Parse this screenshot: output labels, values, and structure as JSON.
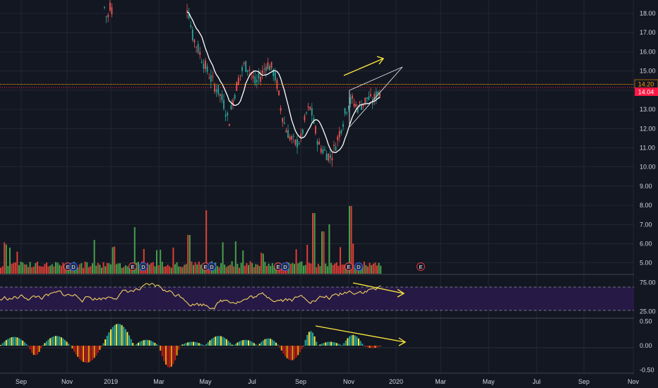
{
  "colors": {
    "background": "#131722",
    "grid": "#2a2e39",
    "up": "#26a69a",
    "down": "#ef5350",
    "volume_up": "#4caf50",
    "volume_down": "#f44336",
    "ma": "#ffffff",
    "rsi": "#f0d060",
    "rsi_band": "#2a1a4a",
    "annotation": "#ffeb3b",
    "last_price": "#ff1744",
    "ref_line": "#ff9800",
    "axis_text": "#d1d4dc"
  },
  "chart_data": [
    {
      "type": "candlestick",
      "pane": "price",
      "y_axis_ticks": [
        "18.00",
        "17.00",
        "16.00",
        "15.00",
        "14.00",
        "13.00",
        "12.00",
        "11.00",
        "10.00",
        "9.00",
        "8.00",
        "7.00",
        "6.00",
        "5.00"
      ],
      "ylim": [
        4.4,
        18.7
      ],
      "price_labels": [
        {
          "text": "14.20",
          "value": 14.2,
          "style": "reference"
        },
        {
          "text": "14.04",
          "value": 14.04,
          "style": "last"
        }
      ],
      "moving_average": "white line",
      "wedge": {
        "upper": [
          [
            40,
            13.85
          ],
          [
            49,
            14.8
          ]
        ],
        "lower": [
          [
            40,
            12.65
          ],
          [
            49,
            14.8
          ]
        ],
        "close": [
          [
            40,
            13.85
          ],
          [
            40,
            12.65
          ]
        ]
      },
      "trend_arrow": {
        "from": [
          40,
          14.55
        ],
        "to": [
          44,
          15.6
        ]
      }
    },
    {
      "type": "bar",
      "pane": "volume",
      "description": "volume histogram",
      "earnings_markers": [
        "E",
        "E",
        "E",
        "E",
        "E",
        "E",
        "E"
      ],
      "dividend_markers": [
        "D",
        "D",
        "D",
        "D",
        "D",
        "D"
      ]
    },
    {
      "type": "line",
      "pane": "rsi",
      "y_axis_ticks": [
        "75.00",
        "25.00"
      ],
      "ylim": [
        15,
        85
      ],
      "bands": [
        70,
        30
      ],
      "trend_arrow": {
        "from": [
          40,
          78
        ],
        "to": [
          47,
          68
        ]
      }
    },
    {
      "type": "bar",
      "pane": "oscillator",
      "y_axis_ticks": [
        "0.50",
        "0.00",
        "-0.50"
      ],
      "ylim": [
        -0.55,
        0.55
      ],
      "trend_arrow": {
        "from": [
          36,
          0.45
        ],
        "to": [
          47,
          0.15
        ]
      }
    }
  ],
  "x_axis": {
    "ticks": [
      {
        "label": "Sep",
        "x": 0
      },
      {
        "label": "Nov",
        "x": 5
      },
      {
        "label": "2019",
        "x": 10
      },
      {
        "label": "Mar",
        "x": 15
      },
      {
        "label": "May",
        "x": 20
      },
      {
        "label": "Jul",
        "x": 25
      },
      {
        "label": "Sep",
        "x": 30
      },
      {
        "label": "Nov",
        "x": 35
      },
      {
        "label": "2020",
        "x": 40
      },
      {
        "label": "Mar",
        "x": 45
      },
      {
        "label": "May",
        "x": 50
      },
      {
        "label": "Jul",
        "x": 55
      },
      {
        "label": "Sep",
        "x": 60
      },
      {
        "label": "Nov",
        "x": 65
      }
    ]
  }
}
